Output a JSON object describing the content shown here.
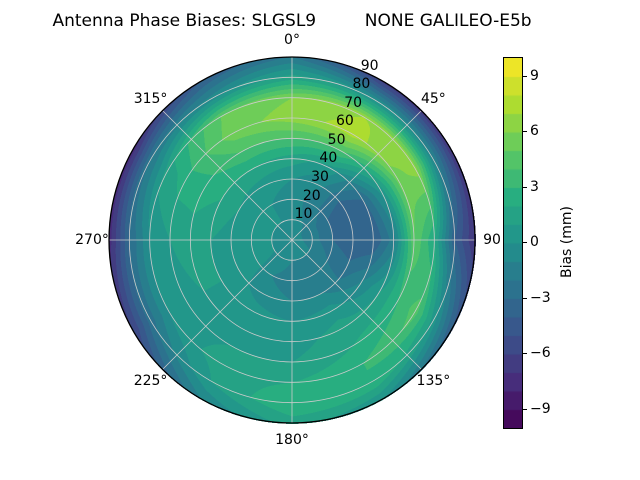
{
  "title": "Antenna Phase Biases: SLGSL9         NONE GALILEO-E5b",
  "chart_data": {
    "type": "heatmap",
    "projection": "polar",
    "title": "Antenna Phase Biases: SLGSL9         NONE GALILEO-E5b",
    "station": "SLGSL9",
    "signal": "NONE GALILEO-E5b",
    "colormap": "viridis",
    "grid_on": true,
    "grid_color": "#cccccc",
    "angular_ticks": [
      {
        "deg": 0,
        "label": "0°"
      },
      {
        "deg": 45,
        "label": "45°"
      },
      {
        "deg": 90,
        "label": "90"
      },
      {
        "deg": 135,
        "label": "135°"
      },
      {
        "deg": 180,
        "label": "180°"
      },
      {
        "deg": 225,
        "label": "225°"
      },
      {
        "deg": 270,
        "label": "270°"
      },
      {
        "deg": 315,
        "label": "315°"
      }
    ],
    "radial_ticks": [
      10,
      20,
      30,
      40,
      50,
      60,
      70,
      80,
      90
    ],
    "radial_max": 90,
    "colorbar": {
      "label": "Bias (mm)",
      "vmin": -10,
      "vmax": 10,
      "level_step": 1,
      "ticks": [
        {
          "value": 9,
          "label": "9"
        },
        {
          "value": 6,
          "label": "6"
        },
        {
          "value": 3,
          "label": "3"
        },
        {
          "value": 0,
          "label": "0"
        },
        {
          "value": -3,
          "label": "−3"
        },
        {
          "value": -6,
          "label": "−6"
        },
        {
          "value": -9,
          "label": "−9"
        }
      ]
    },
    "grid": {
      "azimuth_deg": [
        0,
        30,
        60,
        90,
        120,
        150,
        180,
        210,
        240,
        270,
        300,
        330
      ],
      "zenith_deg": [
        0,
        10,
        20,
        30,
        40,
        50,
        60,
        70,
        80,
        90
      ],
      "bias_mm": [
        [
          -0.5,
          -0.5,
          -0.5,
          0.0,
          1.5,
          4.0,
          6.5,
          6.0,
          1.5,
          -2.0
        ],
        [
          -0.5,
          -1.0,
          -1.5,
          -1.0,
          0.5,
          4.0,
          7.5,
          7.0,
          0.0,
          -6.5
        ],
        [
          -0.5,
          -1.5,
          -3.0,
          -4.0,
          -3.0,
          0.5,
          5.5,
          6.5,
          -1.0,
          -7.0
        ],
        [
          -0.5,
          -1.5,
          -3.0,
          -4.0,
          -4.0,
          -1.5,
          5.0,
          2.0,
          -4.0,
          -7.0
        ],
        [
          -0.5,
          -1.0,
          -2.0,
          -2.5,
          -1.0,
          1.0,
          3.0,
          4.5,
          0.5,
          -4.0
        ],
        [
          -0.5,
          -1.0,
          -1.5,
          -1.0,
          0.5,
          1.5,
          2.0,
          3.0,
          3.0,
          0.0
        ],
        [
          -0.5,
          -1.0,
          -1.5,
          -1.0,
          0.0,
          0.5,
          1.0,
          2.0,
          3.0,
          1.5
        ],
        [
          -0.5,
          -0.5,
          -1.0,
          -0.5,
          0.5,
          1.0,
          1.0,
          1.5,
          1.0,
          -1.0
        ],
        [
          -0.5,
          0.0,
          0.5,
          0.5,
          1.0,
          1.0,
          0.5,
          0.0,
          -2.5,
          -6.0
        ],
        [
          -0.5,
          0.0,
          0.5,
          0.5,
          1.0,
          1.5,
          1.0,
          0.0,
          -3.0,
          -7.5
        ],
        [
          -0.5,
          0.0,
          0.5,
          1.0,
          2.0,
          2.5,
          2.5,
          1.5,
          -2.0,
          -7.5
        ],
        [
          -0.5,
          0.0,
          0.0,
          0.5,
          2.0,
          4.0,
          5.5,
          5.0,
          -0.5,
          -4.0
        ]
      ]
    }
  }
}
